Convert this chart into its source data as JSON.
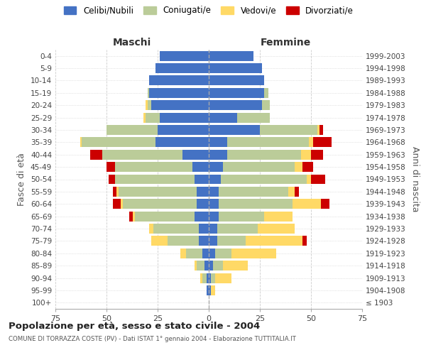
{
  "age_groups": [
    "100+",
    "95-99",
    "90-94",
    "85-89",
    "80-84",
    "75-79",
    "70-74",
    "65-69",
    "60-64",
    "55-59",
    "50-54",
    "45-49",
    "40-44",
    "35-39",
    "30-34",
    "25-29",
    "20-24",
    "15-19",
    "10-14",
    "5-9",
    "0-4"
  ],
  "birth_years": [
    "≤ 1903",
    "1904-1908",
    "1909-1913",
    "1914-1918",
    "1919-1923",
    "1924-1928",
    "1929-1933",
    "1934-1938",
    "1939-1943",
    "1944-1948",
    "1949-1953",
    "1954-1958",
    "1959-1963",
    "1964-1968",
    "1969-1973",
    "1974-1978",
    "1979-1983",
    "1984-1988",
    "1989-1993",
    "1994-1998",
    "1999-2003"
  ],
  "maschi": {
    "celibi": [
      0,
      1,
      1,
      2,
      3,
      5,
      5,
      7,
      6,
      6,
      7,
      8,
      13,
      26,
      25,
      24,
      28,
      29,
      29,
      26,
      24
    ],
    "coniugati": [
      0,
      0,
      2,
      4,
      8,
      15,
      22,
      29,
      36,
      38,
      39,
      38,
      39,
      36,
      25,
      7,
      2,
      1,
      0,
      0,
      0
    ],
    "vedovi": [
      0,
      0,
      1,
      1,
      3,
      8,
      2,
      1,
      1,
      1,
      0,
      0,
      0,
      1,
      0,
      1,
      1,
      0,
      0,
      0,
      0
    ],
    "divorziati": [
      0,
      0,
      0,
      0,
      0,
      0,
      0,
      2,
      4,
      2,
      3,
      4,
      6,
      0,
      0,
      0,
      0,
      0,
      0,
      0,
      0
    ]
  },
  "femmine": {
    "nubili": [
      0,
      1,
      1,
      2,
      3,
      4,
      4,
      5,
      5,
      5,
      6,
      7,
      9,
      9,
      25,
      14,
      26,
      27,
      27,
      26,
      22
    ],
    "coniugate": [
      0,
      0,
      2,
      5,
      8,
      14,
      20,
      22,
      36,
      34,
      42,
      35,
      36,
      40,
      28,
      16,
      4,
      2,
      0,
      0,
      0
    ],
    "vedove": [
      0,
      2,
      8,
      12,
      22,
      28,
      18,
      14,
      14,
      3,
      2,
      4,
      5,
      2,
      1,
      0,
      0,
      0,
      0,
      0,
      0
    ],
    "divorziate": [
      0,
      0,
      0,
      0,
      0,
      2,
      0,
      0,
      4,
      2,
      7,
      5,
      6,
      9,
      2,
      0,
      0,
      0,
      0,
      0,
      0
    ]
  },
  "colors": {
    "celibi_nubili": "#4472C4",
    "coniugati": "#BBCC99",
    "vedovi": "#FFD966",
    "divorziati": "#CC0000"
  },
  "title_main": "Popolazione per età, sesso e stato civile - 2004",
  "title_sub": "COMUNE DI TORRAZZA COSTE (PV) - Dati ISTAT 1° gennaio 2004 - Elaborazione TUTTITALIA.IT",
  "xlabel_left": "Maschi",
  "xlabel_right": "Femmine",
  "ylabel_left": "Fasce di età",
  "ylabel_right": "Anni di nascita",
  "xlim": 75,
  "legend_labels": [
    "Celibi/Nubili",
    "Coniugati/e",
    "Vedovi/e",
    "Divorziati/e"
  ],
  "bg_color": "#ffffff",
  "grid_color": "#cccccc"
}
